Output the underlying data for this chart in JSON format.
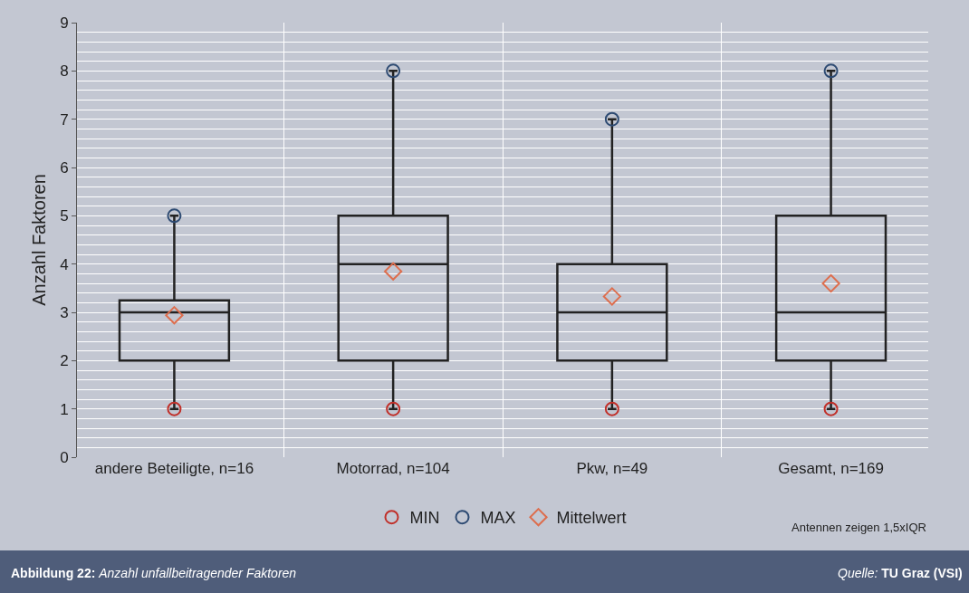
{
  "chart_data": {
    "type": "box",
    "categories": [
      "andere Beteiligte, n=16",
      "Motorrad, n=104",
      "Pkw, n=49",
      "Gesamt, n=169"
    ],
    "ylabel": "Anzahl Faktoren",
    "boxes": [
      {
        "low": 1,
        "q1": 2,
        "median": 3,
        "q3": 3.25,
        "high": 5
      },
      {
        "low": 1,
        "q1": 2,
        "median": 4,
        "q3": 5,
        "high": 8
      },
      {
        "low": 1,
        "q1": 2,
        "median": 3,
        "q3": 4,
        "high": 7
      },
      {
        "low": 1,
        "q1": 2,
        "median": 3,
        "q3": 5,
        "high": 8
      }
    ],
    "color": "#222222",
    "series": [
      {
        "name": "MIN",
        "type": "scatter",
        "marker": "circle",
        "color": "#c0302a",
        "x": [
          "andere Beteiligte, n=16",
          "Motorrad, n=104",
          "Pkw, n=49",
          "Gesamt, n=169"
        ],
        "values": [
          1,
          1,
          1,
          1
        ]
      },
      {
        "name": "MAX",
        "type": "scatter",
        "marker": "circle",
        "color": "#2d4a72",
        "x": [
          "andere Beteiligte, n=16",
          "Motorrad, n=104",
          "Pkw, n=49",
          "Gesamt, n=169"
        ],
        "values": [
          5,
          8,
          7,
          8
        ]
      },
      {
        "name": "Mittelwert",
        "type": "scatter",
        "marker": "diamond",
        "color": "#dd6e4e",
        "x": [
          "andere Beteiligte, n=16",
          "Motorrad, n=104",
          "Pkw, n=49",
          "Gesamt, n=169"
        ],
        "values": [
          2.94,
          3.85,
          3.33,
          3.6
        ]
      }
    ],
    "ylim": [
      0,
      9
    ],
    "yticks": [
      0,
      1,
      2,
      3,
      4,
      5,
      6,
      7,
      8,
      9
    ],
    "grid": true,
    "legend": "bottom",
    "annotations": [
      "Antennen zeigen 1,5xIQR",
      "Abbildung 22: Anzahl unfallbeitragender Faktoren",
      "Quelle: TU Graz (VSI)"
    ]
  }
}
